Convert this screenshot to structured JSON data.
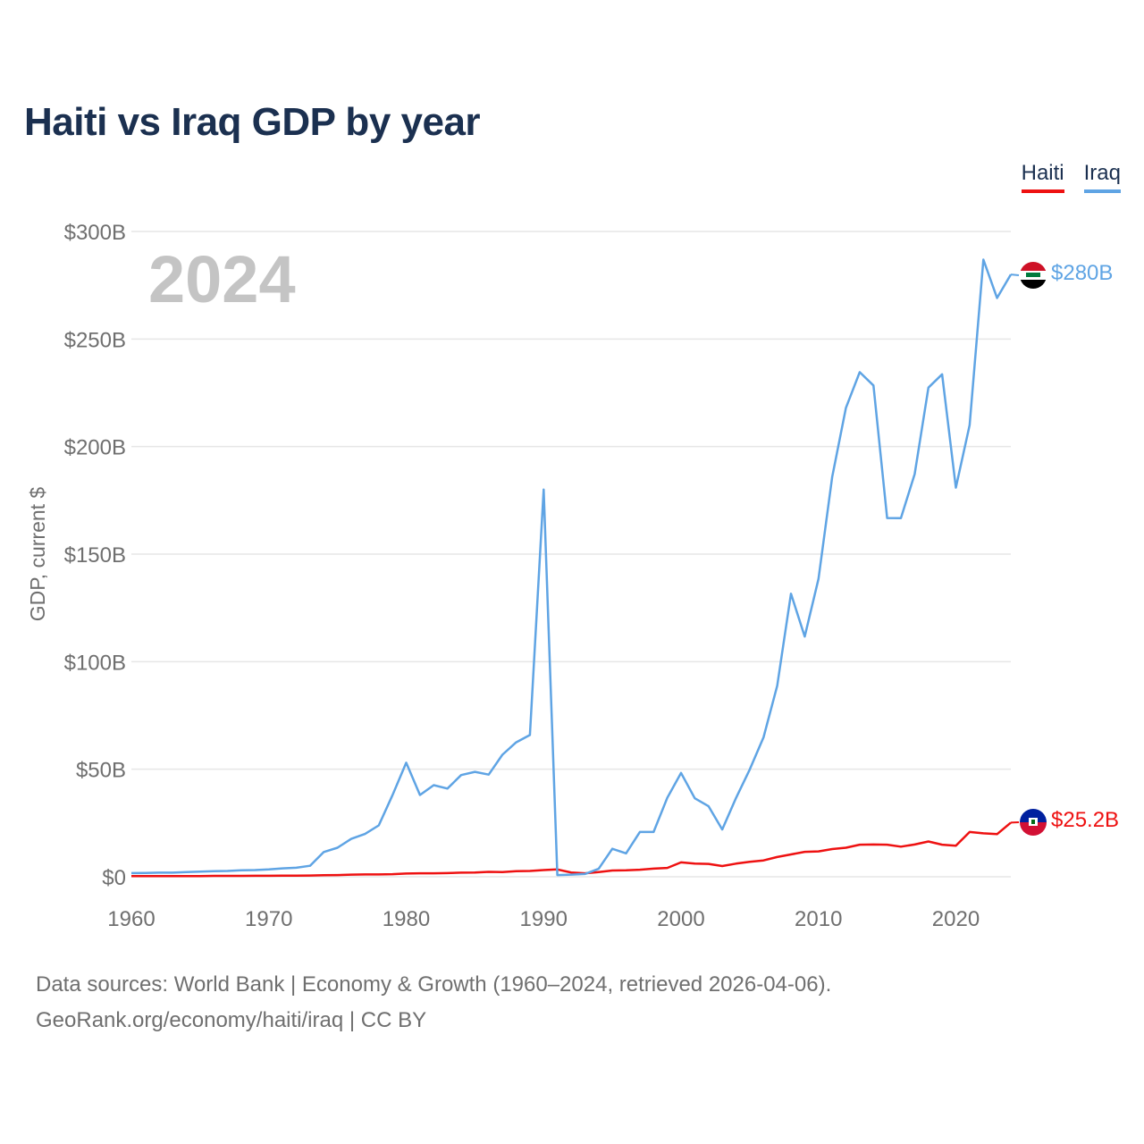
{
  "title": "Haiti vs Iraq GDP by year",
  "year_label": "2024",
  "legend": [
    {
      "label": "Haiti",
      "color": "#ee1111"
    },
    {
      "label": "Iraq",
      "color": "#5fa4e4"
    }
  ],
  "end_labels": {
    "haiti": "$25.2B",
    "iraq": "$280B"
  },
  "footer": {
    "line1": "Data sources: World Bank | Economy & Growth (1960–2024, retrieved 2026-04-06).",
    "line2": "GeoRank.org/economy/haiti/iraq | CC BY"
  },
  "chart_data": {
    "type": "line",
    "title": "Haiti vs Iraq GDP by year",
    "xlabel": "",
    "ylabel": "GDP, current $",
    "xlim": [
      1960,
      2024
    ],
    "ylim": [
      0,
      300
    ],
    "y_unit": "billions USD",
    "x_ticks": [
      1960,
      1970,
      1980,
      1990,
      2000,
      2010,
      2020
    ],
    "y_ticks": [
      {
        "value": 0,
        "label": "$0"
      },
      {
        "value": 50,
        "label": "$50B"
      },
      {
        "value": 100,
        "label": "$100B"
      },
      {
        "value": 150,
        "label": "$150B"
      },
      {
        "value": 200,
        "label": "$200B"
      },
      {
        "value": 250,
        "label": "$250B"
      },
      {
        "value": 300,
        "label": "$300B"
      }
    ],
    "x": [
      1960,
      1961,
      1962,
      1963,
      1964,
      1965,
      1966,
      1967,
      1968,
      1969,
      1970,
      1971,
      1972,
      1973,
      1974,
      1975,
      1976,
      1977,
      1978,
      1979,
      1980,
      1981,
      1982,
      1983,
      1984,
      1985,
      1986,
      1987,
      1988,
      1989,
      1990,
      1991,
      1992,
      1993,
      1994,
      1995,
      1996,
      1997,
      1998,
      1999,
      2000,
      2001,
      2002,
      2003,
      2004,
      2005,
      2006,
      2007,
      2008,
      2009,
      2010,
      2011,
      2012,
      2013,
      2014,
      2015,
      2016,
      2017,
      2018,
      2019,
      2020,
      2021,
      2022,
      2023,
      2024
    ],
    "series": [
      {
        "name": "Haiti",
        "color": "#ee1111",
        "end_label": "$25.2B",
        "values": [
          0.3,
          0.3,
          0.3,
          0.3,
          0.3,
          0.35,
          0.4,
          0.4,
          0.4,
          0.45,
          0.45,
          0.5,
          0.5,
          0.6,
          0.7,
          0.8,
          1.0,
          1.1,
          1.1,
          1.2,
          1.5,
          1.6,
          1.6,
          1.7,
          1.9,
          2.0,
          2.3,
          2.2,
          2.6,
          2.7,
          3.1,
          3.4,
          2.0,
          1.6,
          2.2,
          2.9,
          3.0,
          3.3,
          3.8,
          4.1,
          6.7,
          6.1,
          6.0,
          5.0,
          6.1,
          7.0,
          7.6,
          9.2,
          10.4,
          11.6,
          11.8,
          12.9,
          13.5,
          14.9,
          15.0,
          14.9,
          14.0,
          15.0,
          16.4,
          14.9,
          14.4,
          20.8,
          20.2,
          19.8,
          25.2
        ]
      },
      {
        "name": "Iraq",
        "color": "#5fa4e4",
        "end_label": "$280B",
        "values": [
          1.7,
          1.8,
          1.9,
          1.9,
          2.2,
          2.4,
          2.6,
          2.7,
          3.0,
          3.1,
          3.4,
          3.9,
          4.2,
          5.1,
          11.5,
          13.5,
          17.6,
          19.9,
          23.9,
          37.9,
          53.0,
          38.0,
          42.6,
          41.0,
          47.3,
          48.8,
          47.5,
          56.7,
          62.5,
          65.9,
          180.0,
          0.8,
          1.0,
          1.3,
          3.7,
          13.0,
          10.9,
          20.8,
          20.8,
          36.7,
          48.3,
          36.5,
          32.8,
          22.0,
          36.6,
          49.9,
          64.8,
          88.8,
          131.6,
          111.7,
          138.5,
          185.8,
          218.0,
          234.6,
          228.4,
          166.8,
          166.7,
          187.2,
          227.4,
          233.6,
          180.9,
          210.0,
          286.9,
          269.1,
          280.0
        ]
      }
    ]
  }
}
